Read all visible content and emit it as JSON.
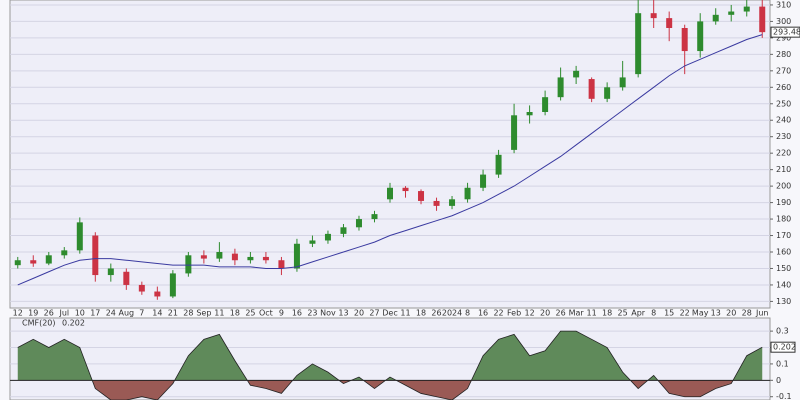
{
  "chart_data": [
    {
      "type": "candlestick",
      "categories": [
        "12",
        "19",
        "26",
        "Jul",
        "10",
        "17",
        "24",
        "Aug",
        "7",
        "14",
        "21",
        "28",
        "Sep",
        "11",
        "18",
        "25",
        "Oct",
        "9",
        "16",
        "23",
        "Nov",
        "13",
        "20",
        "27",
        "Dec",
        "11",
        "18",
        "26",
        "2024",
        "8",
        "16",
        "22",
        "Feb",
        "12",
        "20",
        "26",
        "Mar",
        "11",
        "18",
        "25",
        "Apr",
        "8",
        "15",
        "22",
        "May",
        "13",
        "20",
        "28",
        "Jun"
      ],
      "open": [
        152,
        155,
        153,
        158,
        161,
        170,
        146,
        148,
        140,
        136,
        133,
        147,
        158,
        156,
        159,
        155,
        157,
        155,
        150,
        165,
        167,
        171,
        175,
        180,
        192,
        199,
        197,
        191,
        188,
        192,
        199,
        207,
        222,
        243,
        245,
        254,
        266,
        265,
        253,
        260,
        268,
        305,
        302,
        296,
        282,
        300,
        304,
        306,
        309
      ],
      "high": [
        157,
        158,
        160,
        163,
        181,
        172,
        153,
        150,
        142,
        139,
        149,
        160,
        161,
        166,
        162,
        160,
        160,
        157,
        168,
        170,
        173,
        177,
        182,
        185,
        202,
        200,
        198,
        193,
        194,
        202,
        210,
        222,
        250,
        249,
        258,
        272,
        273,
        266,
        263,
        276,
        313,
        313,
        306,
        298,
        305,
        308,
        310,
        313,
        315
      ],
      "low": [
        150,
        151,
        152,
        156,
        159,
        142,
        142,
        137,
        134,
        131,
        132,
        145,
        153,
        154,
        152,
        153,
        153,
        146,
        148,
        163,
        165,
        169,
        173,
        178,
        190,
        193,
        189,
        185,
        186,
        190,
        197,
        205,
        220,
        238,
        243,
        252,
        262,
        251,
        251,
        258,
        266,
        296,
        288,
        268,
        278,
        298,
        300,
        303,
        290
      ],
      "close": [
        155,
        153,
        158,
        161,
        178,
        146,
        150,
        140,
        136,
        133,
        147,
        158,
        156,
        160,
        155,
        157,
        155,
        150,
        165,
        167,
        171,
        175,
        180,
        183,
        199,
        197,
        191,
        188,
        192,
        199,
        207,
        219,
        243,
        245,
        254,
        266,
        270,
        253,
        260,
        266,
        305,
        302,
        296,
        282,
        300,
        304,
        306,
        309,
        293.48
      ],
      "ma_values": [
        140,
        144,
        148,
        152,
        155,
        156,
        156,
        155,
        154,
        153,
        152,
        152,
        152,
        151,
        151,
        151,
        150,
        150,
        151,
        154,
        157,
        160,
        163,
        166,
        170,
        173,
        176,
        179,
        182,
        186,
        190,
        195,
        200,
        206,
        212,
        218,
        225,
        232,
        239,
        246,
        253,
        260,
        267,
        273,
        277,
        281,
        285,
        289,
        292
      ],
      "up_color": "#2e8b2e",
      "down_color": "#cc3344",
      "ma_color": "#3a3aa0",
      "ylim": [
        126,
        313
      ],
      "yticks": [
        130,
        140,
        150,
        160,
        170,
        180,
        190,
        200,
        210,
        220,
        230,
        240,
        250,
        260,
        270,
        280,
        290,
        300,
        310
      ],
      "grid": true
    },
    {
      "type": "area",
      "title": "CMF(20)",
      "values": [
        0.2,
        0.25,
        0.2,
        0.25,
        0.2,
        -0.05,
        -0.12,
        -0.12,
        -0.1,
        -0.12,
        -0.02,
        0.15,
        0.25,
        0.28,
        0.12,
        -0.03,
        -0.05,
        -0.08,
        0.03,
        0.1,
        0.05,
        -0.02,
        0.02,
        -0.05,
        0.02,
        -0.03,
        -0.08,
        -0.1,
        -0.12,
        -0.05,
        0.15,
        0.25,
        0.28,
        0.15,
        0.18,
        0.3,
        0.3,
        0.25,
        0.2,
        0.05,
        -0.05,
        0.03,
        -0.08,
        -0.1,
        -0.1,
        -0.05,
        -0.02,
        0.15,
        0.202
      ],
      "pos_color": "#5f8a5a",
      "neg_color": "#9a5a55",
      "ylim": [
        -0.12,
        0.38
      ],
      "yticks": [
        -0.1,
        0,
        0.1,
        0.2,
        0.3
      ],
      "grid": true
    }
  ]
}
